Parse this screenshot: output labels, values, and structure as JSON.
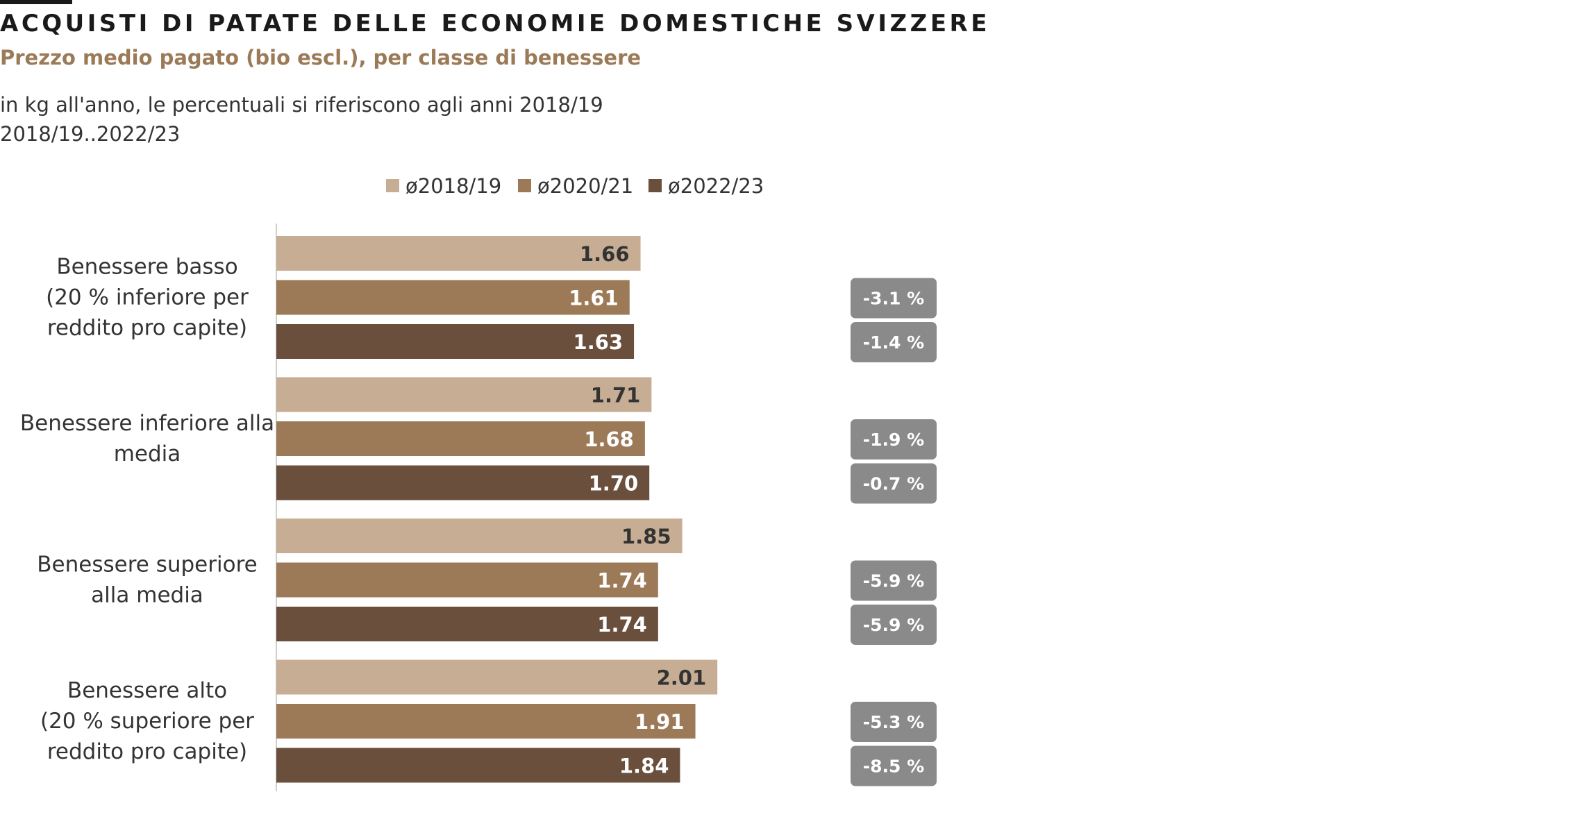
{
  "header": {
    "title": "ACQUISTI DI PATATE DELLE ECONOMIE DOMESTICHE SVIZZERE",
    "subtitle": "Prezzo medio pagato (bio escl.), per classe di benessere",
    "note_line1": "in kg all'anno, le percentuali si riferiscono agli anni 2018/19",
    "note_line2": "2018/19..2022/23"
  },
  "colors": {
    "series": [
      "#c6ad94",
      "#9d7a57",
      "#6b4f3d"
    ],
    "badge": "#8a8a8a",
    "label_dark": "#333333",
    "label_light": "#ffffff"
  },
  "chart_data": {
    "type": "bar",
    "orientation": "horizontal",
    "legend_position": "top",
    "grid": false,
    "xlim": [
      0,
      2.05
    ],
    "categories": [
      [
        "Benessere basso",
        "(20 % inferiore per",
        "reddito pro capite)"
      ],
      [
        "Benessere inferiore alla",
        "media"
      ],
      [
        "Benessere superiore",
        "alla media"
      ],
      [
        "Benessere alto",
        "(20 % superiore per",
        "reddito pro capite)"
      ]
    ],
    "series": [
      {
        "name": "ø2018/19",
        "values": [
          1.66,
          1.71,
          1.85,
          2.01
        ]
      },
      {
        "name": "ø2020/21",
        "values": [
          1.61,
          1.68,
          1.74,
          1.91
        ]
      },
      {
        "name": "ø2022/23",
        "values": [
          1.63,
          1.7,
          1.74,
          1.84
        ]
      }
    ],
    "value_labels": [
      [
        "1.66",
        "1.61",
        "1.63"
      ],
      [
        "1.71",
        "1.68",
        "1.70"
      ],
      [
        "1.85",
        "1.74",
        "1.74"
      ],
      [
        "2.01",
        "1.91",
        "1.84"
      ]
    ],
    "change_labels": [
      [
        "-3.1 %",
        "-1.4 %"
      ],
      [
        "-1.9 %",
        "-0.7 %"
      ],
      [
        "-5.9 %",
        "-5.9 %"
      ],
      [
        "-5.3 %",
        "-8.5 %"
      ]
    ]
  }
}
